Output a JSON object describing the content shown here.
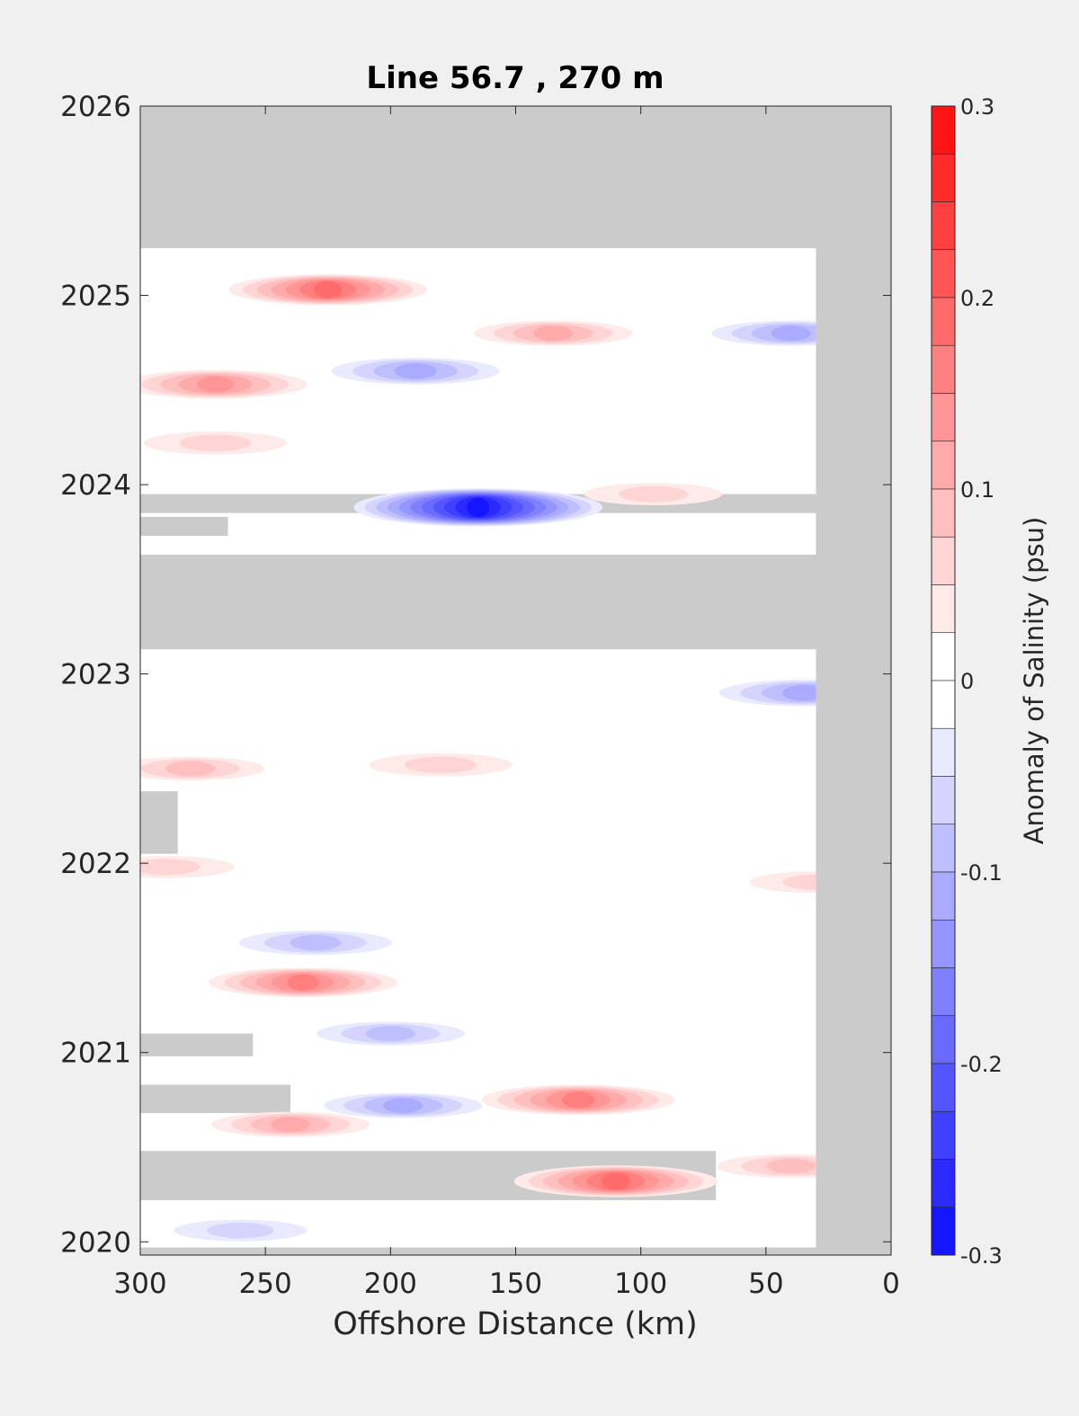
{
  "chart_data": {
    "type": "heatmap",
    "title": "Line 56.7 , 270 m",
    "xlabel": "Offshore Distance (km)",
    "ylabel": "",
    "xlim": [
      300,
      0
    ],
    "x_reversed": true,
    "ylim": [
      2019.93,
      2026
    ],
    "x_ticks": [
      "300",
      "250",
      "200",
      "150",
      "100",
      "50",
      "0"
    ],
    "x_tick_values": [
      300,
      250,
      200,
      150,
      100,
      50,
      0
    ],
    "y_ticks": [
      "2020",
      "2021",
      "2022",
      "2023",
      "2024",
      "2025",
      "2026"
    ],
    "y_tick_values": [
      2020,
      2021,
      2022,
      2023,
      2024,
      2025,
      2026
    ],
    "colorbar": {
      "label": "Anomaly of Salinity (psu)",
      "clim": [
        -0.3,
        0.3
      ],
      "ticks": [
        "0.3",
        "0.2",
        "0.1",
        "0",
        "-0.1",
        "-0.2",
        "-0.3"
      ],
      "tick_values": [
        0.3,
        0.2,
        0.1,
        0,
        -0.1,
        -0.2,
        -0.3
      ],
      "levels": 24
    },
    "no_data_color": "#cbcbcb",
    "positive_color": "#ff0000",
    "negative_color": "#0000ff",
    "data_extent": {
      "x_min_km": 30,
      "x_max_km": 300,
      "t_min": 2019.97,
      "t_max": 2025.25
    },
    "no_data_regions": [
      {
        "t_start": 2025.25,
        "t_end": 2026.0,
        "x_from": 0,
        "x_to": 300
      },
      {
        "t_start": 2023.85,
        "t_end": 2023.95,
        "x_from": 0,
        "x_to": 300
      },
      {
        "t_start": 2023.73,
        "t_end": 2023.83,
        "x_from": 265,
        "x_to": 300
      },
      {
        "t_start": 2023.13,
        "t_end": 2023.63,
        "x_from": 0,
        "x_to": 300
      },
      {
        "t_start": 2022.05,
        "t_end": 2022.38,
        "x_from": 285,
        "x_to": 300
      },
      {
        "t_start": 2020.98,
        "t_end": 2021.1,
        "x_from": 255,
        "x_to": 300
      },
      {
        "t_start": 2020.68,
        "t_end": 2020.83,
        "x_from": 240,
        "x_to": 300
      },
      {
        "t_start": 2020.22,
        "t_end": 2020.48,
        "x_from": 70,
        "x_to": 300
      }
    ],
    "anomalies": [
      {
        "x": 225,
        "t": 2025.03,
        "v": 0.18
      },
      {
        "x": 135,
        "t": 2024.8,
        "v": 0.1
      },
      {
        "x": 270,
        "t": 2024.53,
        "v": 0.15
      },
      {
        "x": 190,
        "t": 2024.6,
        "v": -0.12
      },
      {
        "x": 40,
        "t": 2024.8,
        "v": -0.1
      },
      {
        "x": 165,
        "t": 2023.88,
        "v": -0.28
      },
      {
        "x": 95,
        "t": 2023.95,
        "v": 0.06
      },
      {
        "x": 270,
        "t": 2024.22,
        "v": 0.07
      },
      {
        "x": 35,
        "t": 2022.9,
        "v": -0.12
      },
      {
        "x": 280,
        "t": 2022.5,
        "v": 0.08
      },
      {
        "x": 180,
        "t": 2022.52,
        "v": 0.07
      },
      {
        "x": 290,
        "t": 2021.98,
        "v": 0.06
      },
      {
        "x": 30,
        "t": 2021.9,
        "v": 0.05
      },
      {
        "x": 235,
        "t": 2021.37,
        "v": 0.16
      },
      {
        "x": 230,
        "t": 2021.58,
        "v": -0.09
      },
      {
        "x": 125,
        "t": 2020.75,
        "v": 0.17
      },
      {
        "x": 195,
        "t": 2020.72,
        "v": -0.1
      },
      {
        "x": 200,
        "t": 2021.1,
        "v": -0.08
      },
      {
        "x": 110,
        "t": 2020.32,
        "v": 0.19
      },
      {
        "x": 240,
        "t": 2020.62,
        "v": 0.1
      },
      {
        "x": 40,
        "t": 2020.4,
        "v": 0.08
      },
      {
        "x": 260,
        "t": 2020.06,
        "v": -0.05
      }
    ]
  }
}
